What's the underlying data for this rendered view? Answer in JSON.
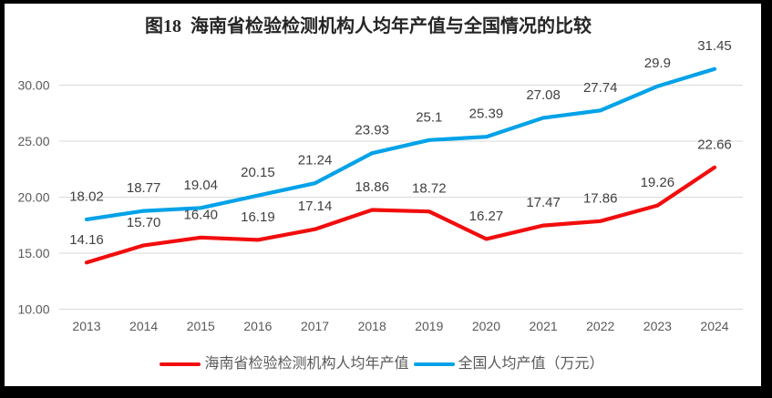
{
  "frame": {
    "background_color": "#000000",
    "panel_color": "#ffffff"
  },
  "title": {
    "text": "图18  海南省检验检测机构人均年产值与全国情况的比较",
    "color": "#262626"
  },
  "chart_data": {
    "type": "line",
    "x": [
      2013,
      2014,
      2015,
      2016,
      2017,
      2018,
      2019,
      2020,
      2021,
      2022,
      2023,
      2024
    ],
    "series": [
      {
        "name": "海南省检验检测机构人均年产值",
        "color": "#F20D0D",
        "values": [
          14.16,
          15.7,
          16.4,
          16.19,
          17.14,
          18.86,
          18.72,
          16.27,
          17.47,
          17.86,
          19.26,
          22.66
        ],
        "labels": [
          "14.16",
          "15.70",
          "16.40",
          "16.19",
          "17.14",
          "18.86",
          "18.72",
          "16.27",
          "17.47",
          "17.86",
          "19.26",
          "22.66"
        ]
      },
      {
        "name": "全国人均产值（万元）",
        "color": "#00A2E8",
        "values": [
          18.02,
          18.77,
          19.04,
          20.15,
          21.24,
          23.93,
          25.1,
          25.39,
          27.08,
          27.74,
          29.9,
          31.45
        ],
        "labels": [
          "18.02",
          "18.77",
          "19.04",
          "20.15",
          "21.24",
          "23.93",
          "25.1",
          "25.39",
          "27.08",
          "27.74",
          "29.9",
          "31.45"
        ]
      }
    ],
    "yticks": [
      {
        "value": 10,
        "label": "10.00"
      },
      {
        "value": 15,
        "label": "15.00"
      },
      {
        "value": 20,
        "label": "20.00"
      },
      {
        "value": 25,
        "label": "25.00"
      },
      {
        "value": 30,
        "label": "30.00"
      }
    ],
    "ylim": [
      10,
      30
    ],
    "grid": true,
    "gridline_color": "#D9D9D9",
    "tick_label_color": "#595959",
    "data_label_color": "#404040",
    "legend_position": "bottom",
    "title": "图18  海南省检验检测机构人均年产值与全国情况的比较",
    "xlabel": "",
    "ylabel": ""
  },
  "legend": {
    "items": [
      {
        "label": "海南省检验检测机构人均年产值",
        "color": "#F20D0D"
      },
      {
        "label": "全国人均产值（万元）",
        "color": "#00A2E8"
      }
    ]
  }
}
